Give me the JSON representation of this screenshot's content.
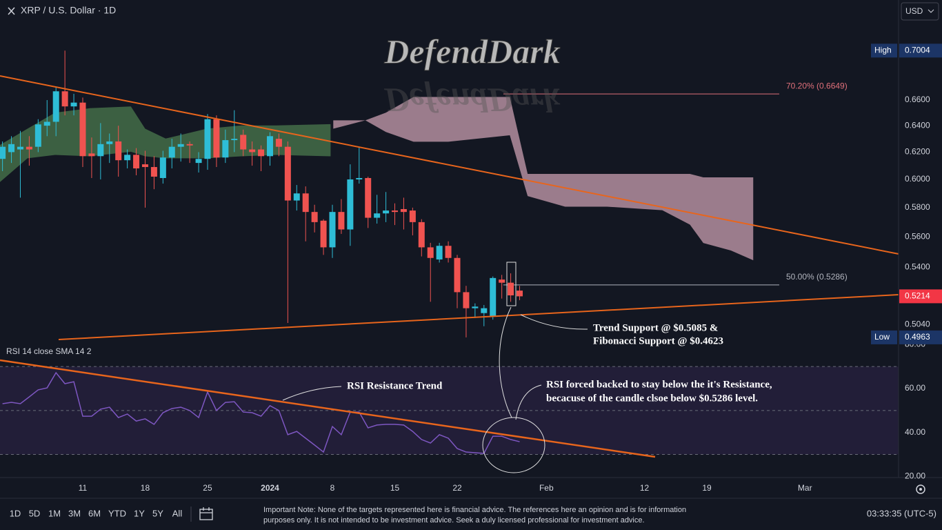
{
  "chart_data": {
    "type": "candlestick",
    "title": "XRP / U.S. Dollar · 1D",
    "currency": "USD",
    "watermark": "DefendDark",
    "log_scale": true,
    "up_color": "#2ebdd6",
    "down_color": "#f05350",
    "x": [
      2,
      3,
      4,
      5,
      6,
      7,
      8,
      9,
      10,
      11,
      12,
      13,
      14,
      15,
      16,
      17,
      18,
      19,
      20,
      21,
      22,
      23,
      24,
      25,
      26,
      27,
      28,
      29,
      30,
      31,
      32,
      33,
      34,
      35,
      36,
      37,
      38,
      39,
      40,
      41,
      42,
      43,
      44,
      45,
      46,
      47,
      48,
      49,
      50,
      51,
      52,
      53,
      54,
      55,
      56,
      57,
      58,
      59,
      60
    ],
    "open": [
      0.615,
      0.62,
      0.622,
      0.624,
      0.624,
      0.64,
      0.643,
      0.667,
      0.655,
      0.658,
      0.619,
      0.617,
      0.626,
      0.628,
      0.614,
      0.618,
      0.611,
      0.609,
      0.601,
      0.616,
      0.624,
      0.626,
      0.612,
      0.615,
      0.645,
      0.616,
      0.629,
      0.633,
      0.622,
      0.622,
      0.617,
      0.63,
      0.624,
      0.585,
      0.59,
      0.577,
      0.571,
      0.553,
      0.577,
      0.565,
      0.6,
      0.601,
      0.573,
      0.576,
      0.578,
      0.579,
      0.578,
      0.57,
      0.553,
      0.545,
      0.554,
      0.546,
      0.524,
      0.514,
      0.511,
      0.509,
      0.532,
      0.53,
      0.525
    ],
    "high": [
      0.628,
      0.632,
      0.636,
      0.632,
      0.645,
      0.66,
      0.67,
      0.7004,
      0.665,
      0.662,
      0.631,
      0.642,
      0.634,
      0.64,
      0.622,
      0.623,
      0.621,
      0.617,
      0.621,
      0.63,
      0.634,
      0.628,
      0.62,
      0.649,
      0.648,
      0.637,
      0.652,
      0.637,
      0.628,
      0.625,
      0.635,
      0.634,
      0.628,
      0.596,
      0.595,
      0.582,
      0.572,
      0.582,
      0.586,
      0.611,
      0.624,
      0.602,
      0.589,
      0.591,
      0.583,
      0.587,
      0.58,
      0.572,
      0.556,
      0.556,
      0.557,
      0.548,
      0.528,
      0.517,
      0.516,
      0.534,
      0.535,
      0.536,
      0.528
    ],
    "low": [
      0.606,
      0.612,
      0.587,
      0.61,
      0.62,
      0.632,
      0.632,
      0.648,
      0.648,
      0.609,
      0.601,
      0.6,
      0.612,
      0.602,
      0.608,
      0.603,
      0.58,
      0.593,
      0.597,
      0.608,
      0.613,
      0.612,
      0.605,
      0.607,
      0.609,
      0.612,
      0.62,
      0.617,
      0.61,
      0.606,
      0.61,
      0.617,
      0.505,
      0.578,
      0.557,
      0.563,
      0.548,
      0.546,
      0.562,
      0.554,
      0.597,
      0.566,
      0.569,
      0.57,
      0.568,
      0.565,
      0.561,
      0.547,
      0.518,
      0.543,
      0.543,
      0.514,
      0.4963,
      0.508,
      0.503,
      0.507,
      0.52,
      0.518,
      0.519
    ],
    "close": [
      0.624,
      0.626,
      0.624,
      0.622,
      0.641,
      0.643,
      0.667,
      0.655,
      0.658,
      0.617,
      0.617,
      0.626,
      0.628,
      0.614,
      0.618,
      0.608,
      0.609,
      0.602,
      0.616,
      0.624,
      0.626,
      0.625,
      0.615,
      0.645,
      0.616,
      0.629,
      0.63,
      0.622,
      0.62,
      0.617,
      0.632,
      0.624,
      0.585,
      0.59,
      0.577,
      0.57,
      0.553,
      0.577,
      0.565,
      0.6,
      0.601,
      0.573,
      0.576,
      0.578,
      0.577,
      0.577,
      0.57,
      0.553,
      0.546,
      0.554,
      0.546,
      0.524,
      0.514,
      0.515,
      0.514,
      0.533,
      0.53,
      0.522,
      0.5214
    ],
    "xlim": [
      1.72,
      102.5
    ],
    "xticks": [
      11,
      18,
      25,
      {
        "value": 32,
        "label": "2024"
      },
      {
        "value": 39,
        "label": "8"
      },
      {
        "value": 46,
        "label": "15"
      },
      {
        "value": 53,
        "label": "22"
      },
      {
        "value": 63,
        "label": "Feb"
      },
      {
        "value": 74,
        "label": "12"
      },
      {
        "value": 81,
        "label": "19"
      },
      {
        "value": 92,
        "label": "Mar"
      }
    ],
    "ylim": [
      0.4938,
      0.7443
    ],
    "yticks": [
      {
        "value": 0.66,
        "label": "0.6600"
      },
      {
        "value": 0.64,
        "label": "0.6400"
      },
      {
        "value": 0.62,
        "label": "0.6200"
      },
      {
        "value": 0.6,
        "label": "0.6000"
      },
      {
        "value": 0.58,
        "label": "0.5800"
      },
      {
        "value": 0.56,
        "label": "0.5600"
      },
      {
        "value": 0.54,
        "label": "0.5400"
      },
      {
        "value": 0.504,
        "label": "0.5040"
      }
    ],
    "high_text": "High",
    "high_label": {
      "value": 0.7004,
      "label": "0.7004"
    },
    "low_text": "Low",
    "low_label": {
      "value": 0.4963,
      "label": "0.4963"
    },
    "last_label": {
      "value": 0.5214,
      "label": "0.5214"
    },
    "fib_levels": [
      {
        "value": 0.6649,
        "label": "70.20% (0.6649)",
        "color": "#e0707a"
      },
      {
        "value": 0.5286,
        "label": "50.00% (0.5286)",
        "color": "#b2b5be"
      }
    ],
    "clouds": [
      {
        "color": "#4b7a4d",
        "x": [
          1.7,
          4.8,
          7.9,
          11.8,
          16.4,
          18.0,
          20.3,
          24.9,
          28.8,
          32.7,
          38.8
        ],
        "upper": [
          0.6253,
          0.6377,
          0.6501,
          0.6536,
          0.655,
          0.6377,
          0.6302,
          0.6377,
          0.6402,
          0.6402,
          0.6412
        ],
        "lower": [
          0.598,
          0.6154,
          0.6179,
          0.6169,
          0.6203,
          0.6169,
          0.6154,
          0.6154,
          0.6169,
          0.6179,
          0.6169
        ]
      },
      {
        "color": "#c99fb0",
        "x": [
          39.1,
          42.7,
          45.0,
          48.1,
          52.0,
          58.9,
          60.9,
          65.1,
          69.8,
          76.0,
          79.1,
          80.6,
          83.7,
          86.2
        ],
        "upper": [
          0.6441,
          0.6441,
          0.6501,
          0.6625,
          0.6625,
          0.6625,
          0.604,
          0.604,
          0.604,
          0.604,
          0.604,
          0.6015,
          0.6015,
          0.6015
        ],
        "lower": [
          0.6377,
          0.6441,
          0.6352,
          0.6278,
          0.6278,
          0.6327,
          0.5881,
          0.5807,
          0.5807,
          0.5782,
          0.5683,
          0.5559,
          0.5509,
          0.5445
        ]
      }
    ],
    "annotations": {
      "trend_support": [
        "Trend Support @ $0.5085 &",
        "Fibonacci Support @ $0.4623"
      ],
      "rsi_trend": "RSI Resistance Trend",
      "rsi_note": [
        "RSI forced backed to stay below the it's Resistance,",
        "becacuse of the candle clsoe below $0.5286 level."
      ]
    },
    "rsi": {
      "type": "line",
      "title": "RSI 14 close SMA 14 2",
      "color": "#7e57c2",
      "values": [
        53.1,
        53.7,
        53.1,
        56.2,
        59.4,
        60.3,
        67.2,
        62.2,
        63.1,
        47.4,
        47.4,
        50.6,
        51.5,
        46.8,
        48.4,
        45.2,
        46.2,
        43.7,
        49.0,
        50.9,
        51.5,
        50.0,
        46.8,
        58.4,
        50.0,
        53.7,
        54.0,
        49.3,
        49.0,
        47.4,
        52.2,
        50.0,
        39.0,
        40.5,
        37.4,
        34.3,
        31.1,
        42.7,
        39.0,
        49.3,
        49.3,
        42.1,
        43.4,
        43.7,
        43.7,
        43.4,
        40.5,
        36.8,
        35.2,
        39.0,
        37.4,
        32.7,
        31.1,
        30.8,
        30.5,
        38.3,
        38.3,
        36.8,
        35.8
      ],
      "ylim": [
        19.5,
        81.35
      ],
      "yticks": [
        {
          "value": 80,
          "label": "80.00"
        },
        {
          "value": 60,
          "label": "60.00"
        },
        {
          "value": 40,
          "label": "40.00"
        },
        {
          "value": 20,
          "label": "20.00"
        }
      ],
      "levels": [
        70,
        50,
        30
      ]
    }
  },
  "toolbar": {
    "timeframes": [
      "1D",
      "5D",
      "1M",
      "3M",
      "6M",
      "YTD",
      "1Y",
      "5Y",
      "All"
    ],
    "note": [
      "Important Note: None of the targets represented here is financial advice. The references here an opinion and is for information",
      "purposes only. It is not intended to be investment advice. Seek a duly licensed professional for investment advice."
    ],
    "clock": "03:33:35 (UTC-5)"
  }
}
